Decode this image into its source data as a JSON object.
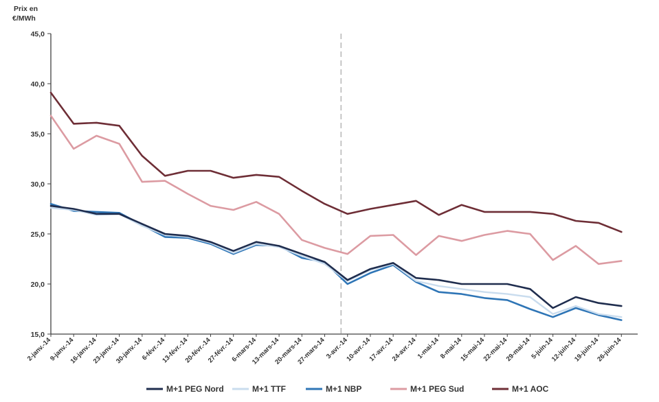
{
  "chart_data": {
    "type": "line",
    "ylabel_line1": "Prix en",
    "ylabel_line2": "€/MWh",
    "ylim": [
      15,
      45
    ],
    "yticks": [
      "15,0",
      "20,0",
      "25,0",
      "30,0",
      "35,0",
      "40,0",
      "45,0"
    ],
    "ytick_values": [
      15,
      20,
      25,
      30,
      35,
      40,
      45
    ],
    "grid": false,
    "xtick_labels": [
      "2-janv.-14",
      "9-janv.-14",
      "16-janv.-14",
      "23-janv.-14",
      "30-janv.-14",
      "6-févr.-14",
      "13-févr.-14",
      "20-févr.-14",
      "27-févr.-14",
      "6-mars-14",
      "13-mars-14",
      "20-mars-14",
      "27-mars-14",
      "3-avr.-14",
      "10-avr.-14",
      "17-avr.-14",
      "24-avr.-14",
      "1-mai-14",
      "8-mai-14",
      "15-mai-14",
      "22-mai-14",
      "29-mai-14",
      "5-juin-14",
      "12-juin-14",
      "19-juin-14",
      "26-juin-14"
    ],
    "x_dates": [
      "2014-01-02",
      "2014-01-09",
      "2014-01-16",
      "2014-01-23",
      "2014-01-30",
      "2014-02-06",
      "2014-02-13",
      "2014-02-20",
      "2014-02-27",
      "2014-03-06",
      "2014-03-13",
      "2014-03-20",
      "2014-03-27",
      "2014-04-03",
      "2014-04-10",
      "2014-04-17",
      "2014-04-24",
      "2014-05-01",
      "2014-05-08",
      "2014-05-15",
      "2014-05-22",
      "2014-05-29",
      "2014-06-05",
      "2014-06-12",
      "2014-06-19",
      "2014-06-26"
    ],
    "vertical_marker_date": "2014-04-01",
    "legend_position": "bottom",
    "series": [
      {
        "name": "M+1 PEG Nord",
        "color": "#1f2d4e",
        "values": [
          27.8,
          27.5,
          27.0,
          27.0,
          26.0,
          25.0,
          24.8,
          24.2,
          23.3,
          24.2,
          23.8,
          23.0,
          22.2,
          20.4,
          21.5,
          22.1,
          20.6,
          20.4,
          20.0,
          20.0,
          20.0,
          19.5,
          17.6,
          18.7,
          18.1,
          17.8
        ]
      },
      {
        "name": "M+1 TTF",
        "color": "#c9dcee",
        "values": [
          27.6,
          27.4,
          26.9,
          27.0,
          25.8,
          24.9,
          24.7,
          24.1,
          23.1,
          24.0,
          23.7,
          22.8,
          22.0,
          20.3,
          21.4,
          22.0,
          20.3,
          19.8,
          19.5,
          19.2,
          19.0,
          18.7,
          17.0,
          17.8,
          17.0,
          16.7
        ]
      },
      {
        "name": "M+1 NBP",
        "color": "#2e75b6",
        "values": [
          28.0,
          27.3,
          27.2,
          27.1,
          25.9,
          24.7,
          24.6,
          24.0,
          23.0,
          23.9,
          23.8,
          22.6,
          22.2,
          20.0,
          21.1,
          21.9,
          20.2,
          19.2,
          19.0,
          18.6,
          18.4,
          17.5,
          16.7,
          17.6,
          16.9,
          16.4
        ]
      },
      {
        "name": "M+1 PEG Sud",
        "color": "#dc9ba2",
        "values": [
          36.8,
          33.5,
          34.8,
          34.0,
          30.2,
          30.3,
          29.0,
          27.8,
          27.4,
          28.2,
          27.0,
          24.4,
          23.6,
          23.0,
          24.8,
          24.9,
          22.9,
          24.8,
          24.3,
          24.9,
          25.3,
          25.0,
          22.4,
          23.8,
          22.0,
          22.3
        ]
      },
      {
        "name": "M+1 AOC",
        "color": "#6e2e36",
        "values": [
          39.1,
          36.0,
          36.1,
          35.8,
          32.8,
          30.8,
          31.3,
          31.3,
          30.6,
          30.9,
          30.7,
          29.3,
          28.0,
          27.0,
          27.5,
          27.9,
          28.3,
          26.9,
          27.9,
          27.2,
          27.2,
          27.2,
          27.0,
          26.3,
          26.1,
          25.2
        ]
      }
    ]
  }
}
